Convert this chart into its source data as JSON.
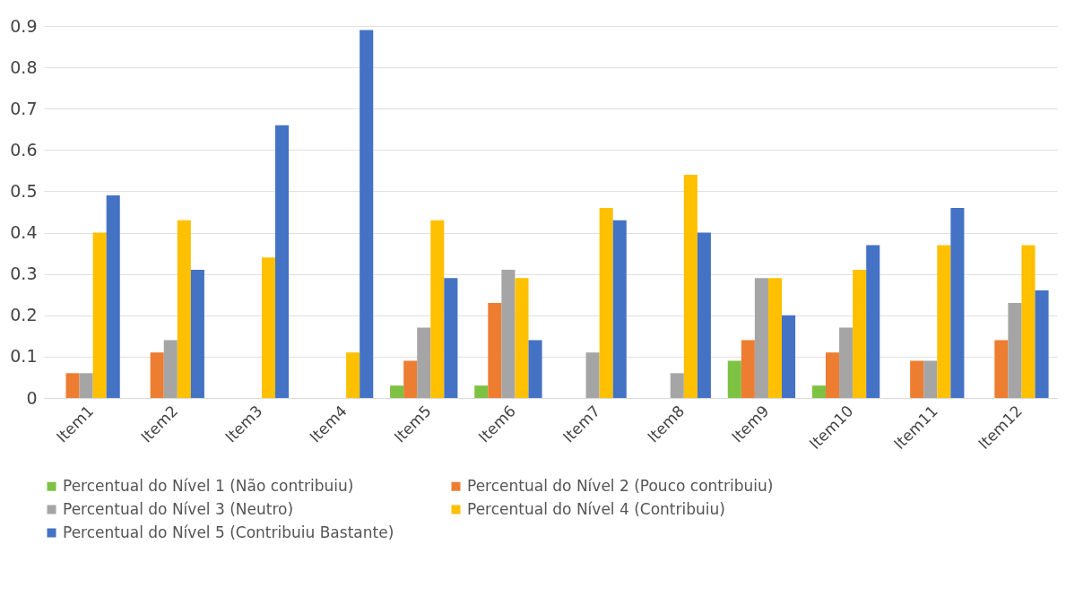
{
  "chart_data": {
    "type": "bar",
    "categories": [
      "Item1",
      "Item2",
      "Item3",
      "Item4",
      "Item5",
      "Item6",
      "Item7",
      "Item8",
      "Item9",
      "Item10",
      "Item11",
      "Item12"
    ],
    "series": [
      {
        "name": "Percentual do Nível 1 (Não contribuiu)",
        "color": "#7dc242",
        "values": [
          0,
          0,
          0,
          0,
          0.03,
          0.03,
          0,
          0,
          0.09,
          0.03,
          0,
          0
        ]
      },
      {
        "name": "Percentual do Nível 2 (Pouco contribuiu)",
        "color": "#ed7d31",
        "values": [
          0.06,
          0.11,
          0,
          0,
          0.09,
          0.23,
          0,
          0,
          0.14,
          0.11,
          0.09,
          0.14
        ]
      },
      {
        "name": "Percentual do Nível 3 (Neutro)",
        "color": "#a5a5a5",
        "values": [
          0.06,
          0.14,
          0,
          0,
          0.17,
          0.31,
          0.11,
          0.06,
          0.29,
          0.17,
          0.09,
          0.23
        ]
      },
      {
        "name": "Percentual do Nível 4 (Contribuiu)",
        "color": "#ffc000",
        "values": [
          0.4,
          0.43,
          0.34,
          0.11,
          0.43,
          0.29,
          0.46,
          0.54,
          0.29,
          0.31,
          0.37,
          0.37
        ]
      },
      {
        "name": "Percentual do Nível 5 (Contribuiu Bastante)",
        "color": "#4472c4",
        "values": [
          0.49,
          0.31,
          0.66,
          0.89,
          0.29,
          0.14,
          0.43,
          0.4,
          0.2,
          0.37,
          0.46,
          0.26
        ]
      }
    ],
    "ylim": [
      0,
      0.9
    ],
    "yticks": [
      0,
      0.1,
      0.2,
      0.3,
      0.4,
      0.5,
      0.6,
      0.7,
      0.8,
      0.9
    ],
    "grid": "y",
    "legend": "bottom"
  }
}
